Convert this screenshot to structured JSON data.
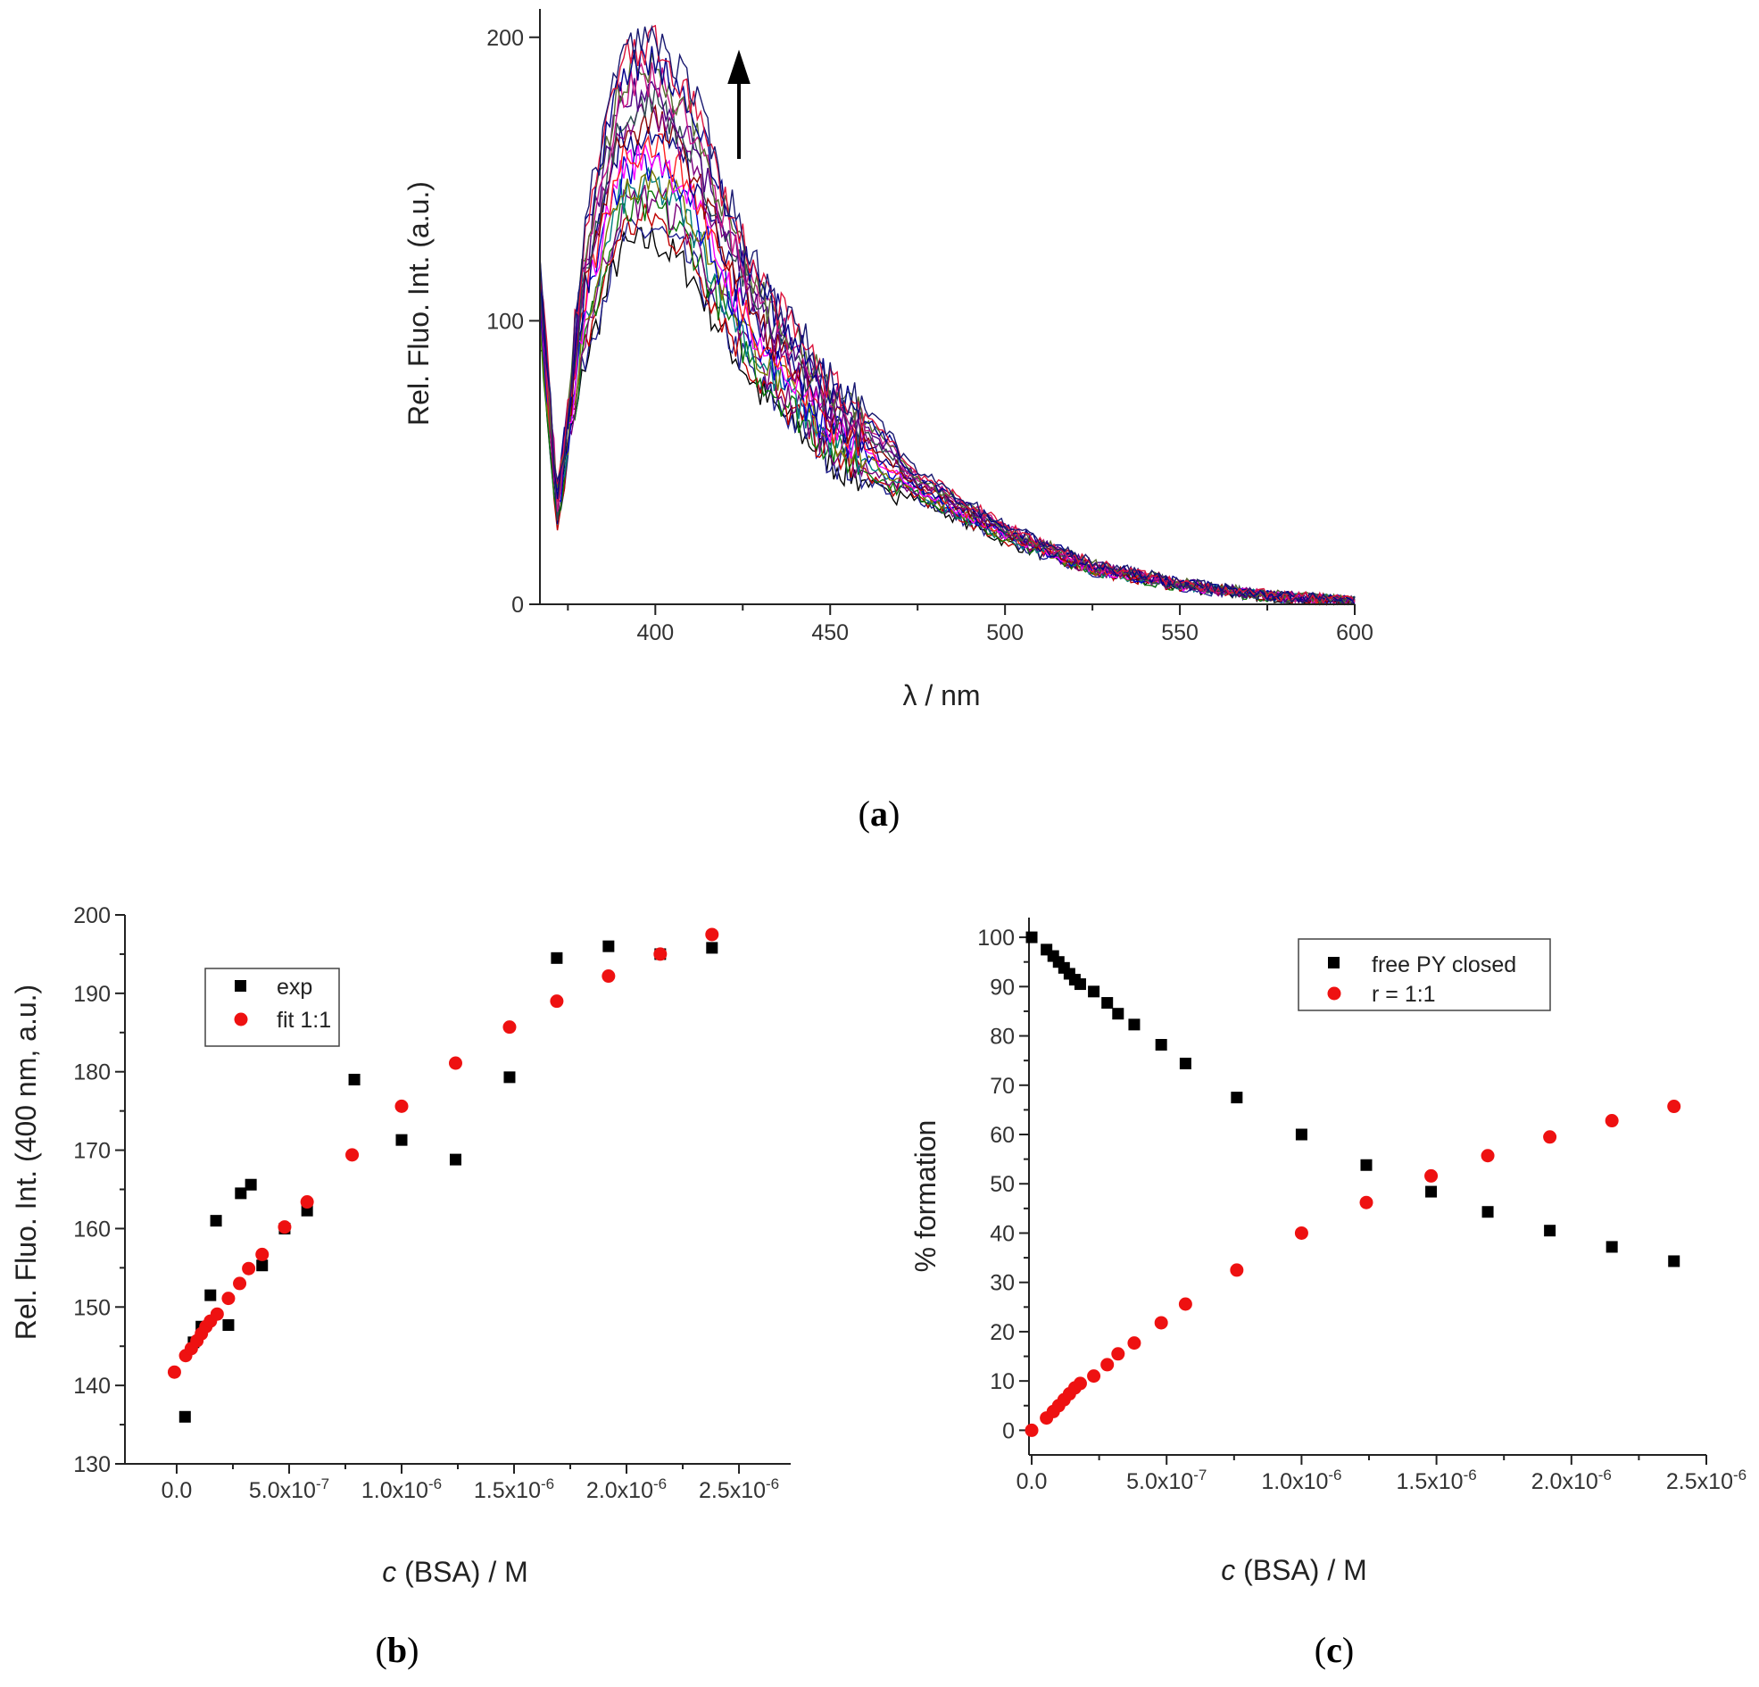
{
  "chart_data": [
    {
      "panel": "(a)",
      "panel_letter": "a",
      "type": "line",
      "title": "",
      "xlabel": "λ / nm",
      "ylabel": "Rel. Fluo. Int. (a.u.)",
      "xlim": [
        367,
        600
      ],
      "ylim": [
        0,
        210
      ],
      "xticks": [
        400,
        450,
        500,
        550,
        600
      ],
      "yticks": [
        0,
        100,
        200
      ],
      "annotation": "upward arrow indicating increasing intensity with BSA addition",
      "n_series": 20,
      "series_colors": [
        "#000000",
        "#1f1f8f",
        "#c00000",
        "#0a7a0a",
        "#7a007a",
        "#008080",
        "#7a7a00",
        "#0000cc",
        "#ff00ff",
        "#ff2020",
        "#000080",
        "#8b0000",
        "#800080",
        "#2f4f4f",
        "#4b0082",
        "#c71585",
        "#556b2f",
        "#00008b",
        "#dc143c",
        "#191970"
      ],
      "representative_points": [
        {
          "x": 367,
          "y": 110
        },
        {
          "x": 372,
          "y": 33
        },
        {
          "x": 380,
          "y": 110
        },
        {
          "x": 390,
          "y": 160
        },
        {
          "x": 400,
          "y": 165
        },
        {
          "x": 410,
          "y": 150
        },
        {
          "x": 420,
          "y": 120
        },
        {
          "x": 430,
          "y": 95
        },
        {
          "x": 450,
          "y": 65
        },
        {
          "x": 475,
          "y": 42
        },
        {
          "x": 500,
          "y": 25
        },
        {
          "x": 525,
          "y": 13
        },
        {
          "x": 550,
          "y": 7
        },
        {
          "x": 575,
          "y": 3
        },
        {
          "x": 600,
          "y": 1
        }
      ]
    },
    {
      "panel": "(b)",
      "panel_letter": "b",
      "type": "scatter",
      "title": "",
      "xlabel_italic": "c",
      "xlabel_rest": " (BSA) / M",
      "ylabel": "Rel. Fluo. Int. (400 nm, a.u.)",
      "xlim": [
        -2.3e-07,
        2.73e-06
      ],
      "ylim": [
        130,
        200
      ],
      "xticks": [
        0.0,
        5e-07,
        1e-06,
        1.5e-06,
        2e-06,
        2.5e-06
      ],
      "xtick_labels": [
        {
          "mant": "0.0",
          "exp": ""
        },
        {
          "mant": "5.0x10",
          "exp": "-7"
        },
        {
          "mant": "1.0x10",
          "exp": "-6"
        },
        {
          "mant": "1.5x10",
          "exp": "-6"
        },
        {
          "mant": "2.0x10",
          "exp": "-6"
        },
        {
          "mant": "2.5x10",
          "exp": "-6"
        }
      ],
      "yticks": [
        130,
        140,
        150,
        160,
        170,
        180,
        190,
        200
      ],
      "legend_position": "upper-left",
      "series": [
        {
          "name": "exp",
          "marker": "square",
          "color": "#000000",
          "x": [
            3.7e-08,
            7.5e-08,
            1.1e-07,
            1.5e-07,
            1.75e-07,
            2.3e-07,
            2.85e-07,
            3.3e-07,
            3.8e-07,
            4.8e-07,
            5.8e-07,
            7.9e-07,
            1e-06,
            1.24e-06,
            1.48e-06,
            1.69e-06,
            1.92e-06,
            2.15e-06,
            2.38e-06
          ],
          "y": [
            136.0,
            145.5,
            147.5,
            151.5,
            161.0,
            147.7,
            164.5,
            165.6,
            155.3,
            160.0,
            162.3,
            179.0,
            171.3,
            168.8,
            179.3,
            194.5,
            196.0,
            195.0,
            195.8
          ]
        },
        {
          "name": "fit 1:1",
          "marker": "circle",
          "color": "#ee1111",
          "x": [
            -1e-08,
            4e-08,
            6.5e-08,
            9e-08,
            1.1e-07,
            1.3e-07,
            1.5e-07,
            1.8e-07,
            2.3e-07,
            2.8e-07,
            3.2e-07,
            3.8e-07,
            4.8e-07,
            5.8e-07,
            7.8e-07,
            1e-06,
            1.24e-06,
            1.48e-06,
            1.69e-06,
            1.92e-06,
            2.15e-06,
            2.38e-06
          ],
          "y": [
            141.7,
            143.8,
            144.7,
            145.7,
            146.6,
            147.5,
            148.2,
            149.1,
            151.1,
            153.0,
            154.9,
            156.7,
            160.2,
            163.4,
            169.4,
            175.6,
            181.1,
            185.7,
            189.0,
            192.2,
            195.0,
            197.5
          ]
        }
      ]
    },
    {
      "panel": "(c)",
      "panel_letter": "c",
      "type": "scatter",
      "title": "",
      "xlabel_italic": "c",
      "xlabel_rest": " (BSA) / M",
      "ylabel": "% formation",
      "xlim": [
        -1e-08,
        2.5e-06
      ],
      "ylim": [
        -5,
        104
      ],
      "xticks": [
        0.0,
        5e-07,
        1e-06,
        1.5e-06,
        2e-06,
        2.5e-06
      ],
      "xtick_labels": [
        {
          "mant": "0.0",
          "exp": ""
        },
        {
          "mant": "5.0x10",
          "exp": "-7"
        },
        {
          "mant": "1.0x10",
          "exp": "-6"
        },
        {
          "mant": "1.5x10",
          "exp": "-6"
        },
        {
          "mant": "2.0x10",
          "exp": "-6"
        },
        {
          "mant": "2.5x10",
          "exp": "-6"
        }
      ],
      "yticks": [
        0,
        10,
        20,
        30,
        40,
        50,
        60,
        70,
        80,
        90,
        100
      ],
      "legend_position": "upper-right",
      "series": [
        {
          "name": "free PY closed",
          "marker": "square",
          "color": "#000000",
          "x": [
            0.0,
            5.5e-08,
            8e-08,
            1e-07,
            1.2e-07,
            1.4e-07,
            1.6e-07,
            1.8e-07,
            2.3e-07,
            2.8e-07,
            3.2e-07,
            3.8e-07,
            4.8e-07,
            5.7e-07,
            7.6e-07,
            1e-06,
            1.24e-06,
            1.48e-06,
            1.69e-06,
            1.92e-06,
            2.15e-06,
            2.38e-06
          ],
          "y": [
            100,
            97.5,
            96.2,
            95.0,
            93.8,
            92.6,
            91.4,
            90.5,
            89.0,
            86.7,
            84.5,
            82.3,
            78.2,
            74.4,
            67.5,
            60.0,
            53.8,
            48.4,
            44.3,
            40.5,
            37.2,
            34.3
          ]
        },
        {
          "name": "r = 1:1",
          "marker": "circle",
          "color": "#ee1111",
          "x": [
            0.0,
            5.5e-08,
            8e-08,
            1e-07,
            1.2e-07,
            1.4e-07,
            1.6e-07,
            1.8e-07,
            2.3e-07,
            2.8e-07,
            3.2e-07,
            3.8e-07,
            4.8e-07,
            5.7e-07,
            7.6e-07,
            1e-06,
            1.24e-06,
            1.48e-06,
            1.69e-06,
            1.92e-06,
            2.15e-06,
            2.38e-06
          ],
          "y": [
            0,
            2.5,
            3.8,
            5.0,
            6.2,
            7.4,
            8.6,
            9.5,
            11.0,
            13.3,
            15.5,
            17.7,
            21.8,
            25.6,
            32.5,
            40.0,
            46.2,
            51.6,
            55.7,
            59.5,
            62.8,
            65.7
          ]
        }
      ]
    }
  ]
}
